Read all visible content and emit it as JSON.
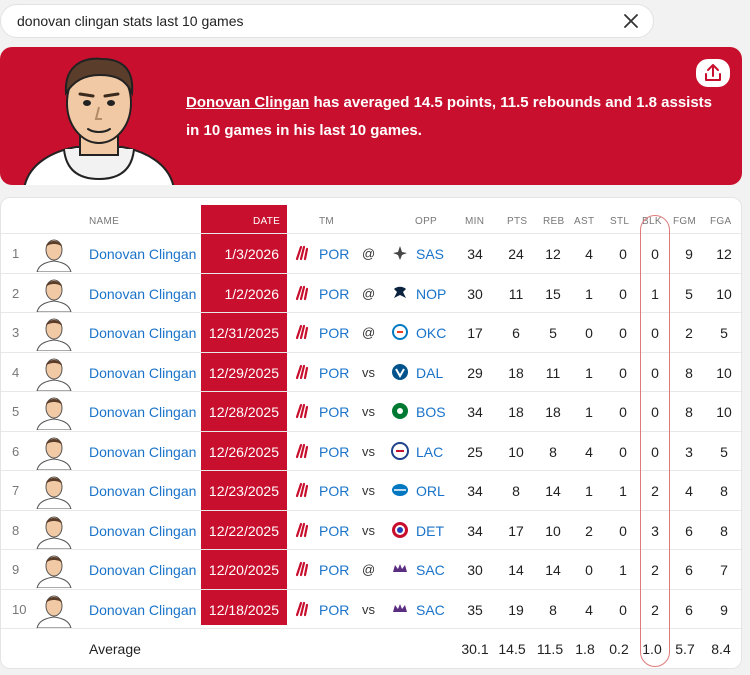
{
  "search": {
    "query": "donovan clingan stats last 10 games"
  },
  "summary": {
    "player_name": "Donovan Clingan",
    "text": " has averaged 14.5 points, 11.5 rebounds and 1.8 assists in 10 games in his last 10 games."
  },
  "table": {
    "headers": {
      "name": "NAME",
      "date": "DATE",
      "tm": "TM",
      "opp": "OPP",
      "min": "MIN",
      "pts": "PTS",
      "reb": "REB",
      "ast": "AST",
      "stl": "STL",
      "blk": "BLK",
      "fgm": "FGM",
      "fga": "FGA"
    },
    "rows": [
      {
        "n": "1",
        "player": "Donovan Clingan",
        "date": "1/3/2026",
        "tm": "POR",
        "loc": "@",
        "opp": "SAS",
        "opp_logo": "spurs-logo",
        "min": "34",
        "pts": "24",
        "reb": "12",
        "ast": "4",
        "stl": "0",
        "blk": "0",
        "fgm": "9",
        "fga": "12"
      },
      {
        "n": "2",
        "player": "Donovan Clingan",
        "date": "1/2/2026",
        "tm": "POR",
        "loc": "@",
        "opp": "NOP",
        "opp_logo": "pelicans-logo",
        "min": "30",
        "pts": "11",
        "reb": "15",
        "ast": "1",
        "stl": "0",
        "blk": "1",
        "fgm": "5",
        "fga": "10"
      },
      {
        "n": "3",
        "player": "Donovan Clingan",
        "date": "12/31/2025",
        "tm": "POR",
        "loc": "@",
        "opp": "OKC",
        "opp_logo": "thunder-logo",
        "min": "17",
        "pts": "6",
        "reb": "5",
        "ast": "0",
        "stl": "0",
        "blk": "0",
        "fgm": "2",
        "fga": "5"
      },
      {
        "n": "4",
        "player": "Donovan Clingan",
        "date": "12/29/2025",
        "tm": "POR",
        "loc": "vs",
        "opp": "DAL",
        "opp_logo": "mavericks-logo",
        "min": "29",
        "pts": "18",
        "reb": "11",
        "ast": "1",
        "stl": "0",
        "blk": "0",
        "fgm": "8",
        "fga": "10"
      },
      {
        "n": "5",
        "player": "Donovan Clingan",
        "date": "12/28/2025",
        "tm": "POR",
        "loc": "vs",
        "opp": "BOS",
        "opp_logo": "celtics-logo",
        "min": "34",
        "pts": "18",
        "reb": "18",
        "ast": "1",
        "stl": "0",
        "blk": "0",
        "fgm": "8",
        "fga": "10"
      },
      {
        "n": "6",
        "player": "Donovan Clingan",
        "date": "12/26/2025",
        "tm": "POR",
        "loc": "vs",
        "opp": "LAC",
        "opp_logo": "clippers-logo",
        "min": "25",
        "pts": "10",
        "reb": "8",
        "ast": "4",
        "stl": "0",
        "blk": "0",
        "fgm": "3",
        "fga": "5"
      },
      {
        "n": "7",
        "player": "Donovan Clingan",
        "date": "12/23/2025",
        "tm": "POR",
        "loc": "vs",
        "opp": "ORL",
        "opp_logo": "magic-logo",
        "min": "34",
        "pts": "8",
        "reb": "14",
        "ast": "1",
        "stl": "1",
        "blk": "2",
        "fgm": "4",
        "fga": "8"
      },
      {
        "n": "8",
        "player": "Donovan Clingan",
        "date": "12/22/2025",
        "tm": "POR",
        "loc": "vs",
        "opp": "DET",
        "opp_logo": "pistons-logo",
        "min": "34",
        "pts": "17",
        "reb": "10",
        "ast": "2",
        "stl": "0",
        "blk": "3",
        "fgm": "6",
        "fga": "8"
      },
      {
        "n": "9",
        "player": "Donovan Clingan",
        "date": "12/20/2025",
        "tm": "POR",
        "loc": "@",
        "opp": "SAC",
        "opp_logo": "kings-logo",
        "min": "30",
        "pts": "14",
        "reb": "14",
        "ast": "0",
        "stl": "1",
        "blk": "2",
        "fgm": "6",
        "fga": "7"
      },
      {
        "n": "10",
        "player": "Donovan Clingan",
        "date": "12/18/2025",
        "tm": "POR",
        "loc": "vs",
        "opp": "SAC",
        "opp_logo": "kings-logo",
        "min": "35",
        "pts": "19",
        "reb": "8",
        "ast": "4",
        "stl": "0",
        "blk": "2",
        "fgm": "6",
        "fga": "9"
      }
    ],
    "average": {
      "label": "Average",
      "min": "30.1",
      "pts": "14.5",
      "reb": "11.5",
      "ast": "1.8",
      "stl": "0.2",
      "blk": "1.0",
      "fgm": "5.7",
      "fga": "8.4"
    }
  },
  "colors": {
    "accent": "#c8102e",
    "link": "#1a73c9",
    "annotation": "#e07a7a"
  }
}
